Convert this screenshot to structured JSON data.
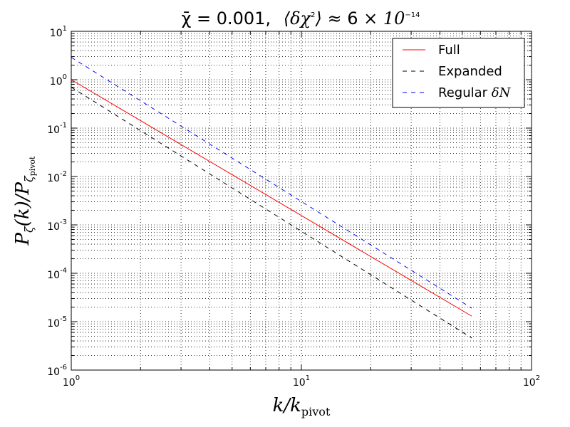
{
  "chart_data": {
    "type": "line",
    "title": {
      "chi_label": "χ̄ = 0.001,",
      "delta_label": "⟨δχ",
      "delta_exp": "2",
      "delta_close": "⟩ ≈ ",
      "coef": "6",
      "times": " × 10",
      "exp": "−14"
    },
    "xlabel": {
      "main": "k/k",
      "sub": "pivot"
    },
    "ylabel": {
      "main": "P",
      "sub1": "ζ",
      "mid": "(k)/P",
      "sub2": "ζ",
      "subsub": "pivot"
    },
    "xscale": "log",
    "yscale": "log",
    "xlim": [
      1,
      100
    ],
    "ylim": [
      1e-06,
      10
    ],
    "grid": true,
    "legend_position": "top-right",
    "x_ticks": [
      {
        "base": "10",
        "exp": "0",
        "value": 1
      },
      {
        "base": "10",
        "exp": "1",
        "value": 10
      },
      {
        "base": "10",
        "exp": "2",
        "value": 100
      }
    ],
    "y_ticks": [
      {
        "base": "10",
        "exp": "-6",
        "value": 1e-06
      },
      {
        "base": "10",
        "exp": "-5",
        "value": 1e-05
      },
      {
        "base": "10",
        "exp": "-4",
        "value": 0.0001
      },
      {
        "base": "10",
        "exp": "-3",
        "value": 0.001
      },
      {
        "base": "10",
        "exp": "-2",
        "value": 0.01
      },
      {
        "base": "10",
        "exp": "-1",
        "value": 0.1
      },
      {
        "base": "10",
        "exp": "0",
        "value": 1
      },
      {
        "base": "10",
        "exp": "1",
        "value": 10
      }
    ],
    "series": [
      {
        "name": "Full",
        "name_extra": "",
        "color": "#ff0000",
        "dash": "solid",
        "x": [
          1,
          55
        ],
        "y": [
          1.0,
          1.3e-05
        ]
      },
      {
        "name": "Expanded",
        "name_extra": "",
        "color": "#000000",
        "dash": "dashed",
        "x": [
          1,
          55
        ],
        "y": [
          0.7,
          4.6e-06
        ]
      },
      {
        "name": "Regular ",
        "name_extra": "δN",
        "color": "#0000ff",
        "dash": "dashed",
        "x": [
          1,
          55
        ],
        "y": [
          2.9,
          1.9e-05
        ]
      }
    ]
  }
}
